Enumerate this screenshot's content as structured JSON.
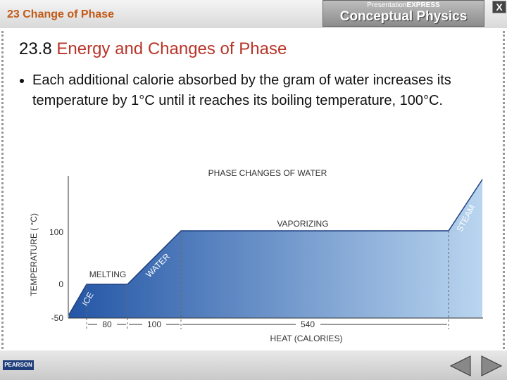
{
  "header": {
    "chapter": "23 Change of Phase",
    "brand_small": "Presentation",
    "brand_small_bold": "EXPRESS",
    "brand": "Conceptual Physics",
    "close": "X"
  },
  "slide": {
    "number": "23.8",
    "title": "Energy and Changes of Phase",
    "bullets": [
      "Each additional calorie absorbed by the gram of water increases its temperature by 1°C until it reaches its boiling temperature, 100°C."
    ]
  },
  "diagram": {
    "title": "PHASE CHANGES OF WATER",
    "y_label": "TEMPERATURE ( °C)",
    "x_label": "HEAT (CALORIES)",
    "yticks": [
      "100",
      "0",
      "-50"
    ],
    "segments": [
      "80",
      "100",
      "540"
    ],
    "phases": {
      "vaporizing": "VAPORIZING",
      "melting": "MELTING",
      "water": "WATER",
      "ice": "ICE",
      "steam": "STEAM"
    }
  },
  "footer": {
    "publisher": "PEARSON"
  }
}
